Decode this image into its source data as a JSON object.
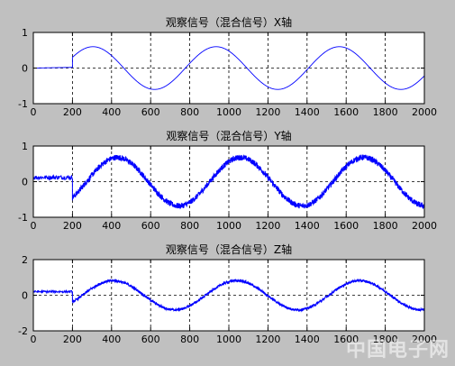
{
  "figure": {
    "background": "#c0c0c0",
    "line_color": "#0000ff",
    "grid": "dashed"
  },
  "watermark_text": "中国电子网",
  "chart_data": [
    {
      "type": "line",
      "title": "观察信号（混合信号）X轴",
      "xlim": [
        0,
        2000
      ],
      "ylim": [
        -1,
        1
      ],
      "xticks": [
        0,
        200,
        400,
        600,
        800,
        1000,
        1200,
        1400,
        1600,
        1800,
        2000
      ],
      "yticks": [
        -1,
        0,
        1
      ],
      "grid": true,
      "series": [
        {
          "pre": {
            "x": [
              0,
              200
            ],
            "y": [
              0,
              0.02
            ],
            "noise": 0.0
          },
          "sine": {
            "x_start": 200,
            "x_end": 2000,
            "amplitude": 0.6,
            "period": 630,
            "phase_deg": 0,
            "y_at_start": 0.3,
            "noise": 0.0
          }
        }
      ]
    },
    {
      "type": "line",
      "title": "观察信号（混合信号）Y轴",
      "xlim": [
        0,
        2000
      ],
      "ylim": [
        -1,
        1
      ],
      "xticks": [
        0,
        200,
        400,
        600,
        800,
        1000,
        1200,
        1400,
        1600,
        1800,
        2000
      ],
      "yticks": [
        -1,
        0,
        1
      ],
      "grid": true,
      "series": [
        {
          "pre": {
            "x": [
              0,
              200
            ],
            "y": [
              0.12,
              0.12
            ],
            "noise": 0.06
          },
          "sine": {
            "x_start": 200,
            "x_end": 2000,
            "amplitude": 0.68,
            "period": 630,
            "phase_deg": 0,
            "y_at_start": -0.45,
            "noise": 0.08
          }
        }
      ]
    },
    {
      "type": "line",
      "title": "观察信号（混合信号）Z轴",
      "xlim": [
        0,
        2000
      ],
      "ylim": [
        -2,
        2
      ],
      "xticks": [
        0,
        200,
        400,
        600,
        800,
        1000,
        1200,
        1400,
        1600,
        1800,
        2000
      ],
      "yticks": [
        -2,
        0,
        2
      ],
      "grid": true,
      "series": [
        {
          "pre": {
            "x": [
              0,
              200
            ],
            "y": [
              0.2,
              0.2
            ],
            "noise": 0.06
          },
          "sine": {
            "x_start": 200,
            "x_end": 2000,
            "amplitude": 0.82,
            "period": 630,
            "phase_deg": 0,
            "y_at_start": -0.4,
            "noise": 0.07
          }
        }
      ]
    }
  ]
}
